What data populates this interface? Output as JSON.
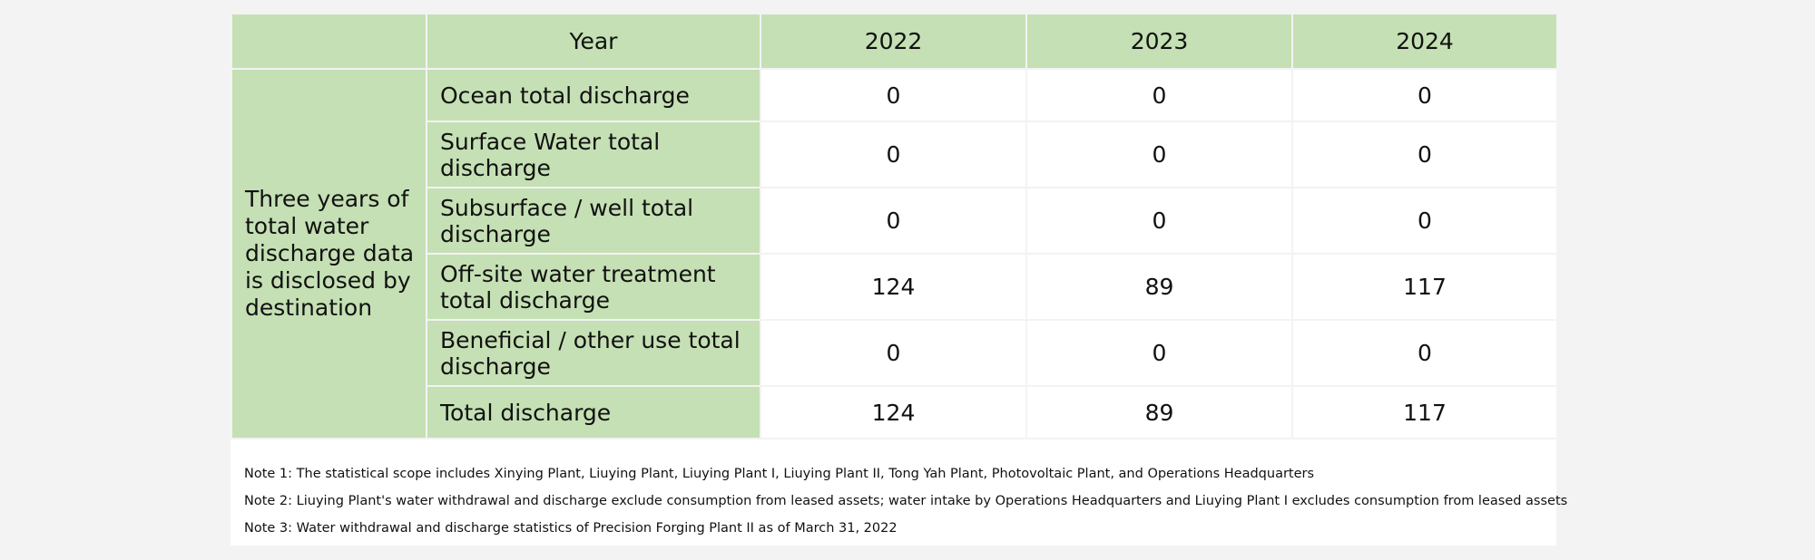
{
  "table": {
    "header": {
      "corner": "",
      "year_label": "Year",
      "years": [
        "2022",
        "2023",
        "2024"
      ]
    },
    "group_label": "Three years of total water discharge data is disclosed by destination",
    "rows": [
      {
        "label": "Ocean total discharge",
        "values": [
          "0",
          "0",
          "0"
        ]
      },
      {
        "label": "Surface Water total discharge",
        "values": [
          "0",
          "0",
          "0"
        ]
      },
      {
        "label": "Subsurface / well total discharge",
        "values": [
          "0",
          "0",
          "0"
        ]
      },
      {
        "label": "Off-site water treatment total discharge",
        "values": [
          "124",
          "89",
          "117"
        ]
      },
      {
        "label": "Beneficial / other use total discharge",
        "values": [
          "0",
          "0",
          "0"
        ]
      },
      {
        "label": "Total discharge",
        "values": [
          "124",
          "89",
          "117"
        ]
      }
    ]
  },
  "notes": [
    "Note 1: The statistical scope includes Xinying Plant, Liuying Plant, Liuying Plant I, Liuying Plant II, Tong Yah Plant, Photovoltaic Plant, and Operations Headquarters",
    "Note 2: Liuying Plant's water withdrawal and discharge exclude consumption from leased assets; water intake by Operations Headquarters and Liuying Plant I excludes consumption from leased assets",
    "Note 3: Water withdrawal and discharge statistics of Precision Forging Plant II as of March 31, 2022"
  ],
  "colors": {
    "header_fill": "#c5e0b4",
    "cell_fill": "#ffffff",
    "page_background": "#f3f3f3",
    "text": "#111111"
  }
}
